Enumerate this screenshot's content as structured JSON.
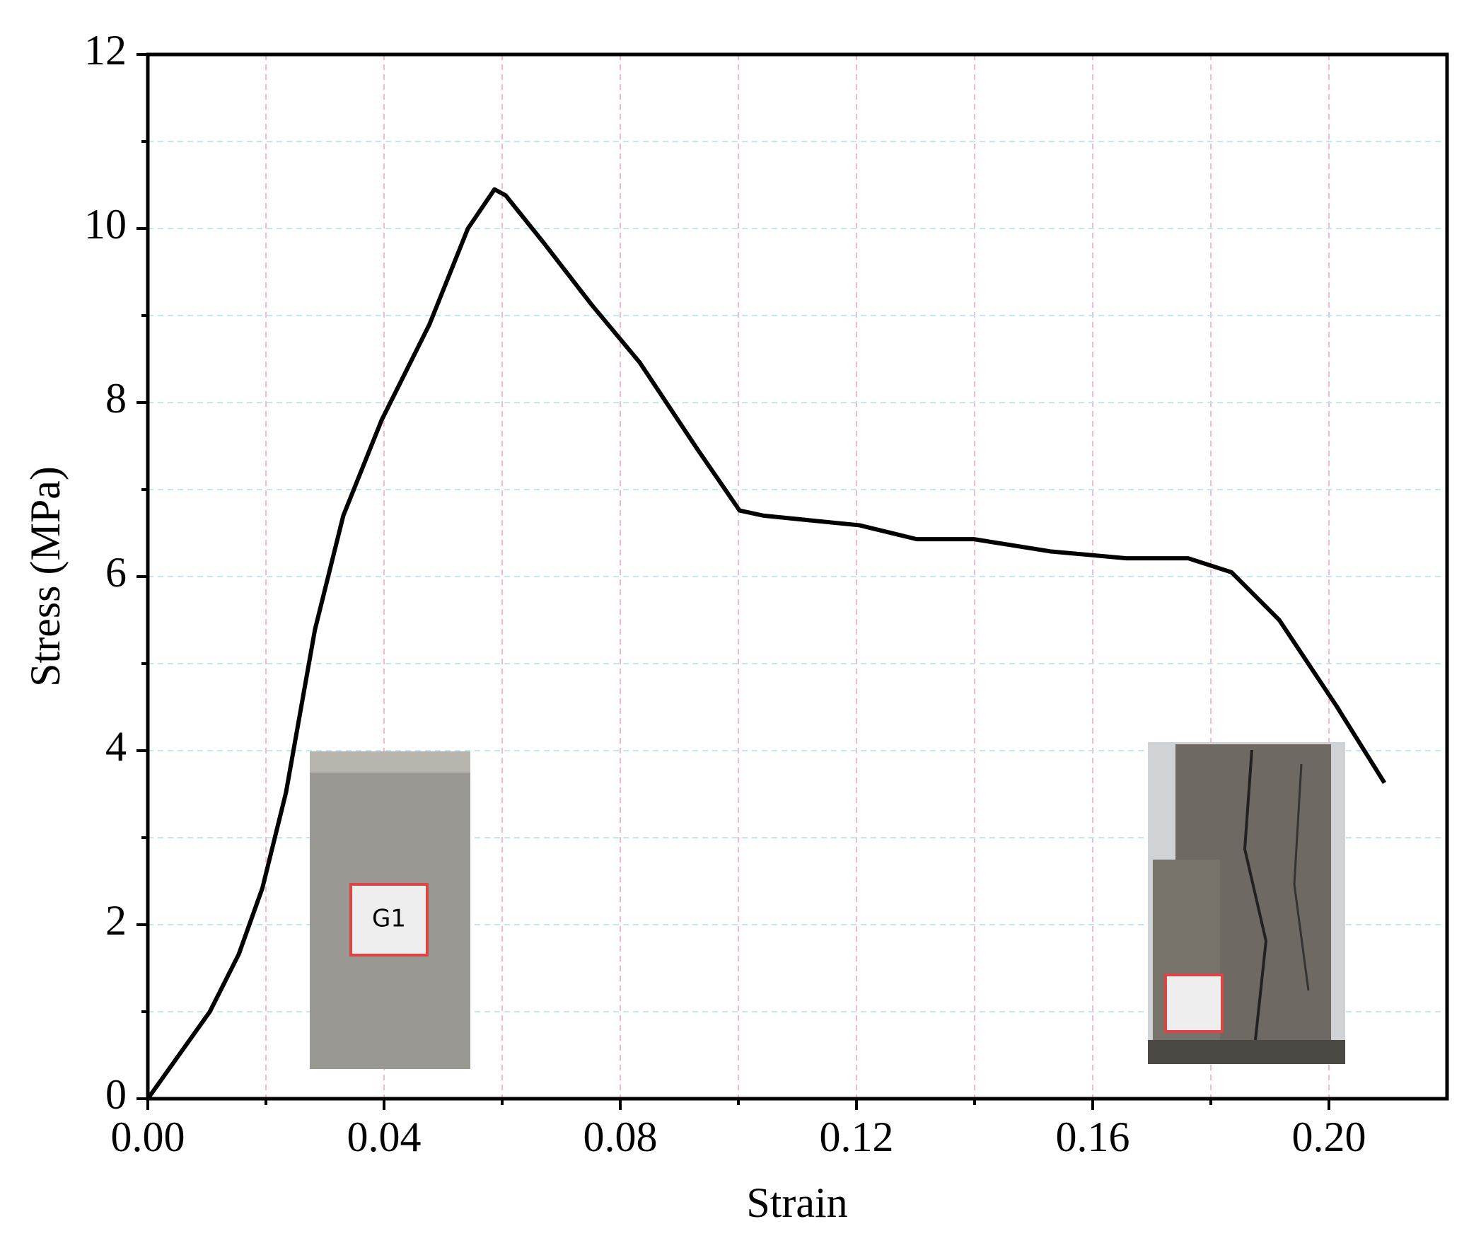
{
  "chart_data": {
    "type": "line",
    "x_label": "Strain",
    "y_label": "Stress (MPa)",
    "xlim": [
      0,
      0.22
    ],
    "ylim": [
      0,
      12
    ],
    "xticks": [
      {
        "value": 0,
        "label": "0.00"
      },
      {
        "value": 0.04,
        "label": "0.04"
      },
      {
        "value": 0.08,
        "label": "0.08"
      },
      {
        "value": 0.12,
        "label": "0.12"
      },
      {
        "value": 0.16,
        "label": "0.16"
      },
      {
        "value": 0.2,
        "label": "0.20"
      }
    ],
    "yticks": [
      0,
      2,
      4,
      6,
      8,
      10,
      12
    ],
    "xminorticks": [
      0.02,
      0.06,
      0.1,
      0.14,
      0.18
    ],
    "yminorticks": [
      1,
      3,
      5,
      7,
      9,
      11
    ],
    "grid": true,
    "series": [
      {
        "color": "#000000",
        "x": [
          0,
          0.0105,
          0.0154,
          0.0194,
          0.0234,
          0.0283,
          0.0331,
          0.0396,
          0.0477,
          0.0542,
          0.0587,
          0.0606,
          0.0671,
          0.0752,
          0.0833,
          0.093,
          0.1002,
          0.1043,
          0.1205,
          0.1302,
          0.1399,
          0.1528,
          0.1657,
          0.1762,
          0.1835,
          0.1916,
          0.2013,
          0.2094
        ],
        "values": [
          0,
          1.0,
          1.66,
          2.42,
          3.52,
          5.39,
          6.7,
          7.8,
          8.9,
          10.0,
          10.45,
          10.38,
          9.83,
          9.12,
          8.46,
          7.47,
          6.76,
          6.7,
          6.59,
          6.43,
          6.43,
          6.29,
          6.21,
          6.21,
          6.05,
          5.5,
          4.51,
          3.63
        ]
      }
    ]
  }
}
